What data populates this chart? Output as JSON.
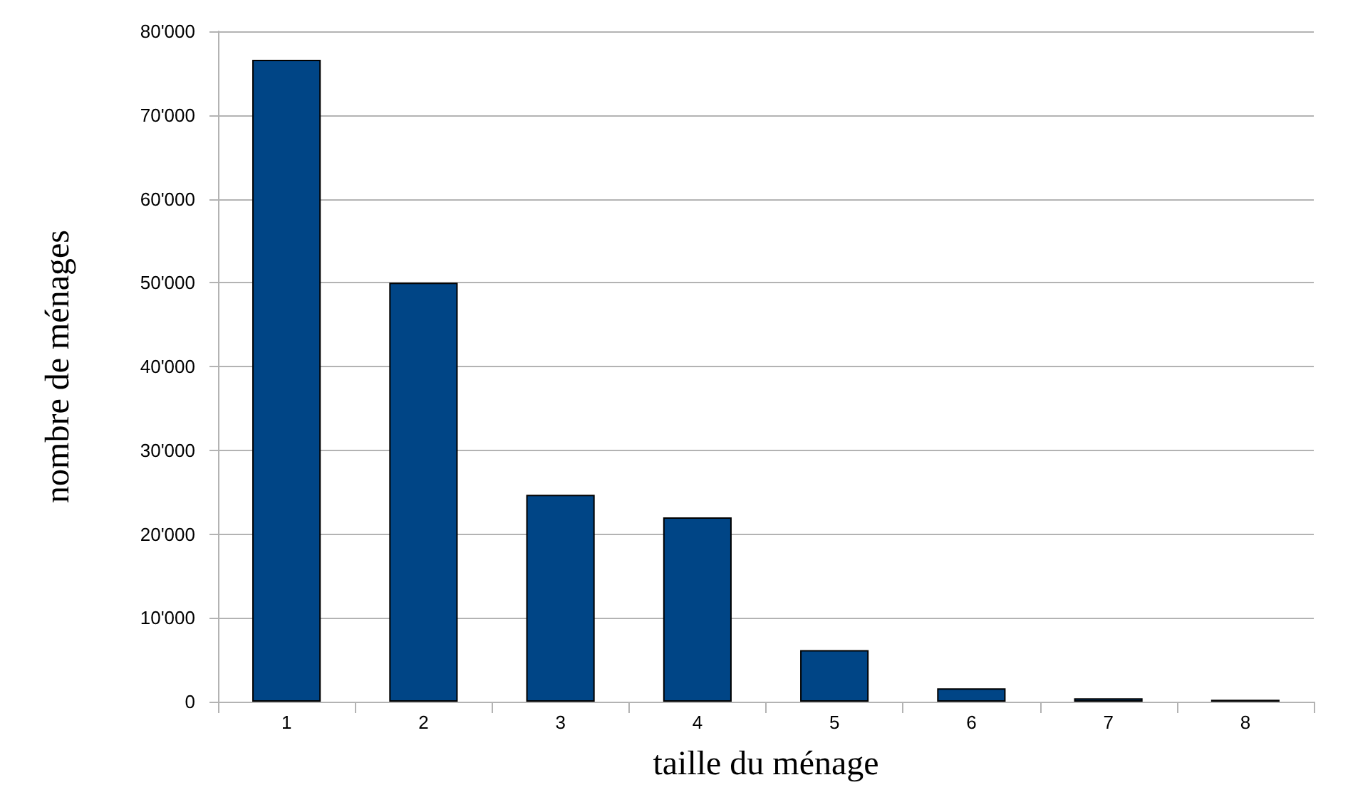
{
  "chart_data": {
    "type": "bar",
    "xlabel": "taille du ménage",
    "ylabel": "nombre de ménages",
    "categories": [
      "1",
      "2",
      "3",
      "4",
      "5",
      "6",
      "7",
      "8"
    ],
    "values": [
      76600,
      50000,
      24700,
      22000,
      6150,
      1600,
      400,
      230
    ],
    "color": "#004586",
    "ylim": [
      0,
      80000
    ],
    "yticks": [
      {
        "value": 0,
        "label": "0"
      },
      {
        "value": 10000,
        "label": "10'000"
      },
      {
        "value": 20000,
        "label": "20'000"
      },
      {
        "value": 30000,
        "label": "30'000"
      },
      {
        "value": 40000,
        "label": "40'000"
      },
      {
        "value": 50000,
        "label": "50'000"
      },
      {
        "value": 60000,
        "label": "60'000"
      },
      {
        "value": 70000,
        "label": "70'000"
      },
      {
        "value": 80000,
        "label": "80'000"
      }
    ],
    "grid": "y"
  }
}
